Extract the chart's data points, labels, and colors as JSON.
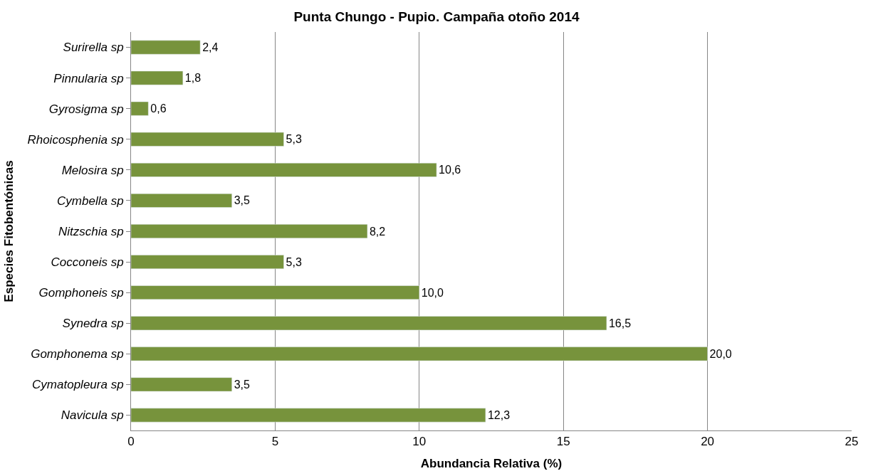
{
  "chart_data": {
    "type": "bar",
    "orientation": "horizontal",
    "title": "Punta Chungo - Pupio. Campaña otoño 2014",
    "xlabel": "Abundancia Relativa (%)",
    "ylabel": "Especies Fitobentónicas",
    "categories": [
      "Surirella sp",
      "Pinnularia sp",
      "Gyrosigma sp",
      "Rhoicosphenia sp",
      "Melosira sp",
      "Cymbella sp",
      "Nitzschia sp",
      "Cocconeis sp",
      "Gomphoneis sp",
      "Synedra sp",
      "Gomphonema sp",
      "Cymatopleura sp",
      "Navicula sp"
    ],
    "values": [
      2.4,
      1.8,
      0.6,
      5.3,
      10.6,
      3.5,
      8.2,
      5.3,
      10.0,
      16.5,
      20.0,
      3.5,
      12.3
    ],
    "value_labels": [
      "2,4",
      "1,8",
      "0,6",
      "5,3",
      "10,6",
      "3,5",
      "8,2",
      "5,3",
      "10,0",
      "16,5",
      "20,0",
      "3,5",
      "12,3"
    ],
    "color": "#77933c",
    "xlim": [
      0,
      25
    ],
    "xticks": [
      0,
      5,
      10,
      15,
      20,
      25
    ],
    "grid": "x"
  }
}
